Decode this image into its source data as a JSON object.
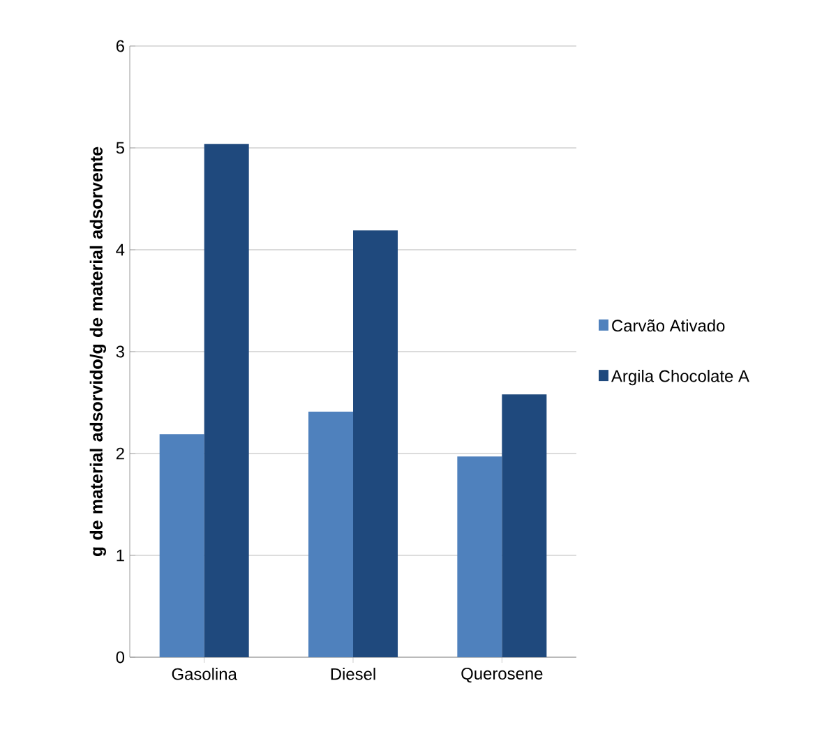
{
  "chart_data": {
    "type": "bar",
    "ylabel": "g de material adsorvido/g de material adsorvente",
    "categories": [
      "Gasolina",
      "Diesel",
      "Querosene"
    ],
    "series": [
      {
        "name": "Carvão Ativado",
        "color": "#4f81bd",
        "values": [
          2.19,
          2.41,
          1.97
        ]
      },
      {
        "name": "Argila Chocolate A",
        "color": "#1f497d",
        "values": [
          5.04,
          4.19,
          2.58
        ]
      }
    ],
    "ylim": [
      0,
      6
    ],
    "yticks": [
      0,
      1,
      2,
      3,
      4,
      5,
      6
    ],
    "grid": "y",
    "legend": "right"
  }
}
